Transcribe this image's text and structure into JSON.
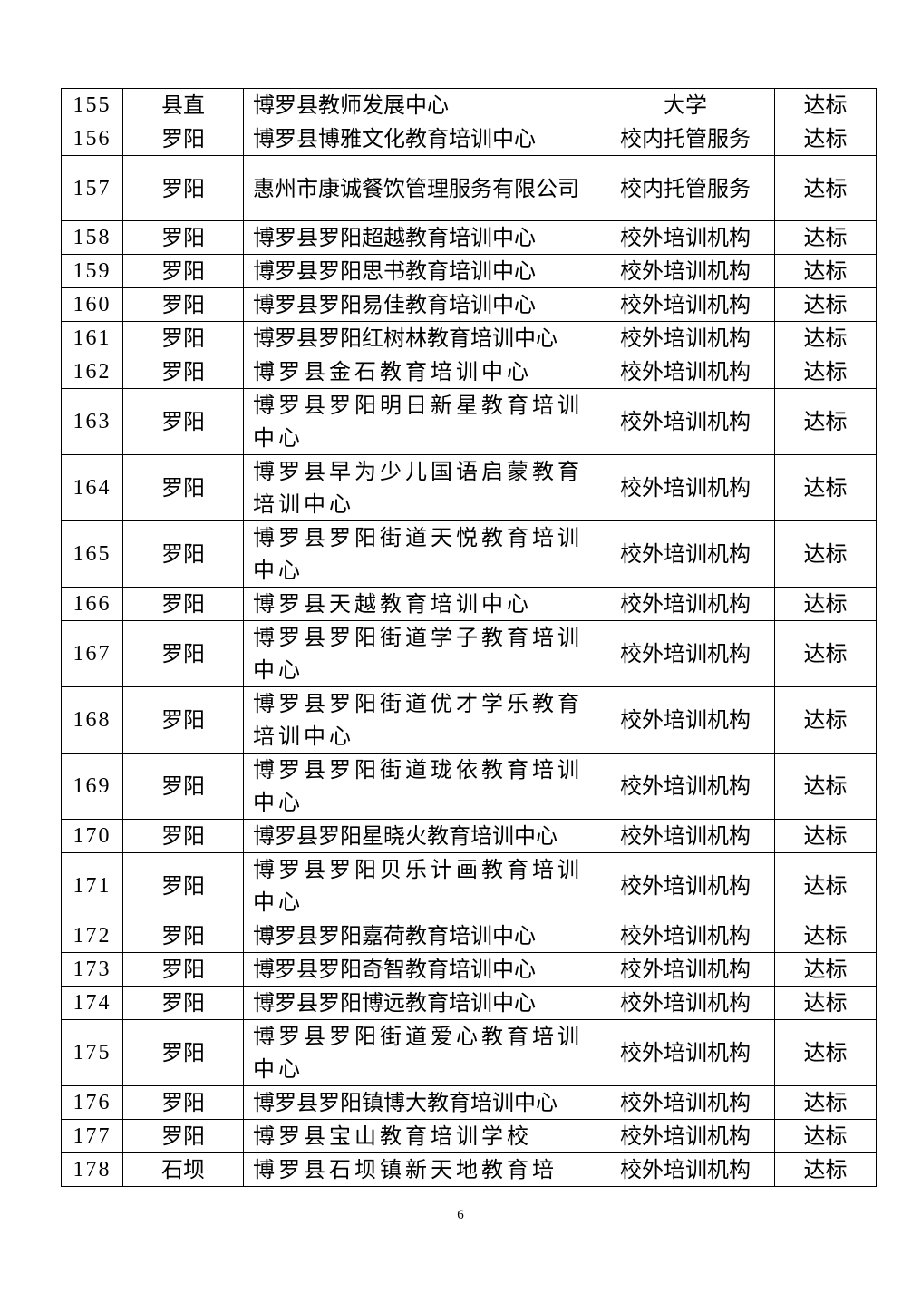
{
  "table": {
    "rows": [
      {
        "no": "155",
        "town": "县直",
        "name": "博罗县教师发展中心",
        "type": "大学",
        "result": "达标"
      },
      {
        "no": "156",
        "town": "罗阳",
        "name": "博罗县博雅文化教育培训中心",
        "type": "校内托管服务",
        "result": "达标"
      },
      {
        "no": "157",
        "town": "罗阳",
        "name": "惠州市康诚餐饮管理服务有限公司",
        "type": "校内托管服务",
        "result": "达标"
      },
      {
        "no": "158",
        "town": "罗阳",
        "name": "博罗县罗阳超越教育培训中心",
        "type": "校外培训机构",
        "result": "达标"
      },
      {
        "no": "159",
        "town": "罗阳",
        "name": "博罗县罗阳思书教育培训中心",
        "type": "校外培训机构",
        "result": "达标"
      },
      {
        "no": "160",
        "town": "罗阳",
        "name": "博罗县罗阳易佳教育培训中心",
        "type": "校外培训机构",
        "result": "达标"
      },
      {
        "no": "161",
        "town": "罗阳",
        "name": "博罗县罗阳红树林教育培训中心",
        "type": "校外培训机构",
        "result": "达标"
      },
      {
        "no": "162",
        "town": "罗阳",
        "name": "博罗县金石教育培训中心",
        "type": "校外培训机构",
        "result": "达标"
      },
      {
        "no": "163",
        "town": "罗阳",
        "name": "博罗县罗阳明日新星教育培训中心",
        "type": "校外培训机构",
        "result": "达标"
      },
      {
        "no": "164",
        "town": "罗阳",
        "name": "博罗县早为少儿国语启蒙教育培训中心",
        "type": "校外培训机构",
        "result": "达标"
      },
      {
        "no": "165",
        "town": "罗阳",
        "name": "博罗县罗阳街道天悦教育培训中心",
        "type": "校外培训机构",
        "result": "达标"
      },
      {
        "no": "166",
        "town": "罗阳",
        "name": "博罗县天越教育培训中心",
        "type": "校外培训机构",
        "result": "达标"
      },
      {
        "no": "167",
        "town": "罗阳",
        "name": "博罗县罗阳街道学子教育培训中心",
        "type": "校外培训机构",
        "result": "达标"
      },
      {
        "no": "168",
        "town": "罗阳",
        "name": "博罗县罗阳街道优才学乐教育培训中心",
        "type": "校外培训机构",
        "result": "达标"
      },
      {
        "no": "169",
        "town": "罗阳",
        "name": "博罗县罗阳街道珑依教育培训中心",
        "type": "校外培训机构",
        "result": "达标"
      },
      {
        "no": "170",
        "town": "罗阳",
        "name": "博罗县罗阳星晓火教育培训中心",
        "type": "校外培训机构",
        "result": "达标"
      },
      {
        "no": "171",
        "town": "罗阳",
        "name": "博罗县罗阳贝乐计画教育培训中心",
        "type": "校外培训机构",
        "result": "达标"
      },
      {
        "no": "172",
        "town": "罗阳",
        "name": "博罗县罗阳嘉荷教育培训中心",
        "type": "校外培训机构",
        "result": "达标"
      },
      {
        "no": "173",
        "town": "罗阳",
        "name": "博罗县罗阳奇智教育培训中心",
        "type": "校外培训机构",
        "result": "达标"
      },
      {
        "no": "174",
        "town": "罗阳",
        "name": "博罗县罗阳博远教育培训中心",
        "type": "校外培训机构",
        "result": "达标"
      },
      {
        "no": "175",
        "town": "罗阳",
        "name": "博罗县罗阳街道爱心教育培训中心",
        "type": "校外培训机构",
        "result": "达标"
      },
      {
        "no": "176",
        "town": "罗阳",
        "name": "博罗县罗阳镇博大教育培训中心",
        "type": "校外培训机构",
        "result": "达标"
      },
      {
        "no": "177",
        "town": "罗阳",
        "name": "博罗县宝山教育培训学校",
        "type": "校外培训机构",
        "result": "达标"
      },
      {
        "no": "178",
        "town": "石坝",
        "name": "博罗县石坝镇新天地教育培",
        "type": "校外培训机构",
        "result": "达标"
      }
    ]
  },
  "footer": {
    "page_number": "6"
  }
}
